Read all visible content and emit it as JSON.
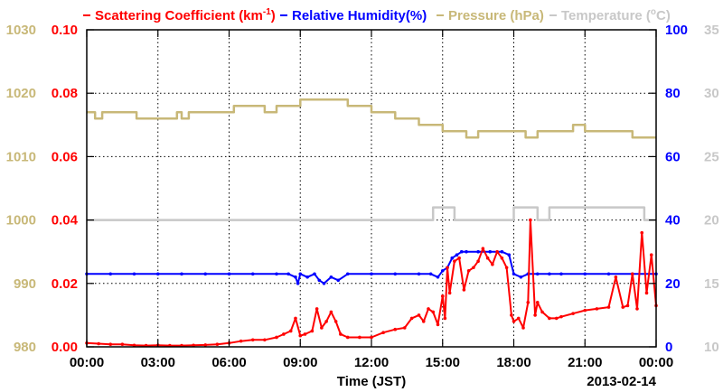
{
  "chart_data": {
    "type": "line",
    "legend": [
      {
        "label": "Scattering Coefficient (km",
        "sup": "-1",
        "suffix": ")",
        "color": "#ff0000"
      },
      {
        "label": "Relative Humidity(%)",
        "sup": "",
        "suffix": "",
        "color": "#0000ff"
      },
      {
        "label": "Pressure (hPa)",
        "sup": "",
        "suffix": "",
        "color": "#c8b878"
      },
      {
        "label": "Temperature (",
        "sup": "o",
        "suffix": "C)",
        "color": "#c8c8c8"
      }
    ],
    "xlabel": "Time (JST)",
    "date_label": "2013-02-14",
    "x_ticks": [
      "00:00",
      "03:00",
      "06:00",
      "09:00",
      "12:00",
      "15:00",
      "18:00",
      "21:00",
      "00:00"
    ],
    "xlim_hours": [
      0,
      24
    ],
    "grid": true,
    "axes": {
      "pressure": {
        "ticks": [
          "980",
          "990",
          "1000",
          "1010",
          "1020",
          "1030"
        ],
        "lim": [
          980,
          1030
        ],
        "color": "#c8b878",
        "side": "left-outer"
      },
      "scattering": {
        "ticks": [
          "0.00",
          "0.02",
          "0.04",
          "0.06",
          "0.08",
          "0.10"
        ],
        "lim": [
          0,
          0.1
        ],
        "color": "#ff0000",
        "side": "left-inner"
      },
      "humidity": {
        "ticks": [
          "0",
          "20",
          "40",
          "60",
          "80",
          "100"
        ],
        "lim": [
          0,
          100
        ],
        "color": "#0000ff",
        "side": "right-inner"
      },
      "temperature": {
        "ticks": [
          "10",
          "15",
          "20",
          "25",
          "30",
          "35"
        ],
        "lim": [
          10,
          35
        ],
        "color": "#c8c8c8",
        "side": "right-outer"
      }
    },
    "series": [
      {
        "name": "Scattering Coefficient (km-1)",
        "axis": "scattering",
        "color": "#ff0000",
        "x": [
          0,
          0.5,
          1,
          1.5,
          2,
          2.5,
          3,
          3.5,
          4,
          4.5,
          5,
          5.5,
          6,
          6.5,
          7,
          7.5,
          8,
          8.3,
          8.6,
          8.8,
          9,
          9.2,
          9.5,
          9.7,
          9.9,
          10.1,
          10.3,
          10.5,
          10.7,
          11,
          11.5,
          12,
          12.5,
          13,
          13.4,
          13.7,
          14,
          14.2,
          14.4,
          14.6,
          14.8,
          15,
          15.1,
          15.2,
          15.3,
          15.5,
          15.7,
          15.9,
          16.1,
          16.3,
          16.5,
          16.7,
          16.9,
          17.1,
          17.3,
          17.5,
          17.7,
          17.9,
          18,
          18.2,
          18.4,
          18.6,
          18.7,
          18.9,
          19,
          19.2,
          19.5,
          19.8,
          20,
          20.5,
          21,
          21.5,
          22,
          22.3,
          22.6,
          22.8,
          23,
          23.2,
          23.4,
          23.6,
          23.8,
          24
        ],
        "y": [
          0.0012,
          0.001,
          0.0008,
          0.0008,
          0.0005,
          0.0004,
          0.0005,
          0.0004,
          0.0004,
          0.0005,
          0.0006,
          0.0008,
          0.0012,
          0.0018,
          0.0022,
          0.0022,
          0.003,
          0.004,
          0.005,
          0.009,
          0.0035,
          0.004,
          0.005,
          0.012,
          0.006,
          0.008,
          0.011,
          0.008,
          0.004,
          0.003,
          0.003,
          0.003,
          0.0045,
          0.0055,
          0.006,
          0.009,
          0.01,
          0.008,
          0.012,
          0.011,
          0.007,
          0.016,
          0.009,
          0.025,
          0.017,
          0.027,
          0.028,
          0.018,
          0.024,
          0.025,
          0.027,
          0.031,
          0.028,
          0.026,
          0.03,
          0.028,
          0.025,
          0.01,
          0.008,
          0.009,
          0.006,
          0.014,
          0.04,
          0.01,
          0.014,
          0.011,
          0.009,
          0.009,
          0.0095,
          0.0105,
          0.0115,
          0.012,
          0.0125,
          0.022,
          0.0125,
          0.013,
          0.023,
          0.012,
          0.036,
          0.017,
          0.029,
          0.013
        ]
      },
      {
        "name": "Relative Humidity(%)",
        "axis": "humidity",
        "color": "#0000ff",
        "x": [
          0,
          1,
          2,
          3,
          4,
          5,
          6,
          7,
          8,
          8.5,
          8.8,
          8.9,
          9,
          9.3,
          9.6,
          9.8,
          10,
          10.3,
          10.6,
          11,
          12,
          13,
          14,
          14.5,
          14.8,
          15,
          15.2,
          15.4,
          15.6,
          15.8,
          16,
          16.5,
          17,
          17.5,
          17.8,
          18,
          18.3,
          18.6,
          19,
          19.5,
          20,
          21,
          22,
          23,
          24
        ],
        "y": [
          23,
          23,
          23,
          23,
          23,
          23,
          23,
          23,
          23,
          23,
          22,
          20,
          23,
          22,
          23,
          21,
          20,
          22,
          21,
          23,
          23,
          23,
          23,
          23,
          22,
          24,
          25,
          28,
          29,
          30,
          30,
          30,
          30,
          30,
          29,
          23,
          22,
          23,
          23,
          23,
          23,
          23,
          23,
          23,
          23
        ]
      },
      {
        "name": "Pressure (hPa)",
        "axis": "pressure",
        "color": "#c8b878",
        "x": [
          0,
          0.3,
          0.35,
          0.6,
          0.65,
          1,
          1.5,
          2,
          2.1,
          2.5,
          3,
          3.5,
          3.8,
          4,
          4.3,
          4.5,
          5,
          5.5,
          6,
          6.2,
          6.5,
          7,
          7.5,
          7.8,
          8,
          8.5,
          9,
          9.5,
          10,
          10.5,
          11,
          11.5,
          12,
          12.5,
          13,
          13.5,
          14,
          14.5,
          15,
          15.5,
          16,
          16.5,
          17,
          17.5,
          18,
          18.5,
          19,
          19.5,
          20,
          20.5,
          21,
          21.5,
          22,
          22.5,
          23,
          23.5,
          24
        ],
        "y": [
          1017,
          1017,
          1016,
          1016,
          1017,
          1017,
          1017,
          1017,
          1016,
          1016,
          1016,
          1016,
          1017,
          1016,
          1017,
          1017,
          1017,
          1017,
          1017,
          1018,
          1018,
          1018,
          1017,
          1017,
          1018,
          1018,
          1019,
          1019,
          1019,
          1019,
          1018,
          1018,
          1017,
          1017,
          1016,
          1016,
          1015,
          1015,
          1014,
          1014,
          1013,
          1014,
          1014,
          1014,
          1014,
          1013,
          1014,
          1014,
          1014,
          1015,
          1014,
          1014,
          1014,
          1014,
          1013,
          1013,
          1013
        ]
      },
      {
        "name": "Temperature (oC)",
        "axis": "temperature",
        "color": "#c8c8c8",
        "x": [
          0,
          2,
          4,
          6,
          8,
          10,
          12,
          14,
          14.3,
          14.6,
          15,
          15.5,
          16,
          17,
          17.5,
          17.7,
          18,
          18.5,
          18.8,
          19,
          19.5,
          20,
          21,
          22,
          23,
          23.5,
          24
        ],
        "y": [
          20,
          20,
          20,
          20,
          20,
          20,
          20,
          20,
          20,
          21,
          21,
          20,
          20,
          20,
          20,
          20,
          21,
          21,
          21,
          20,
          21,
          21,
          21,
          21,
          21,
          20,
          20
        ]
      }
    ]
  }
}
